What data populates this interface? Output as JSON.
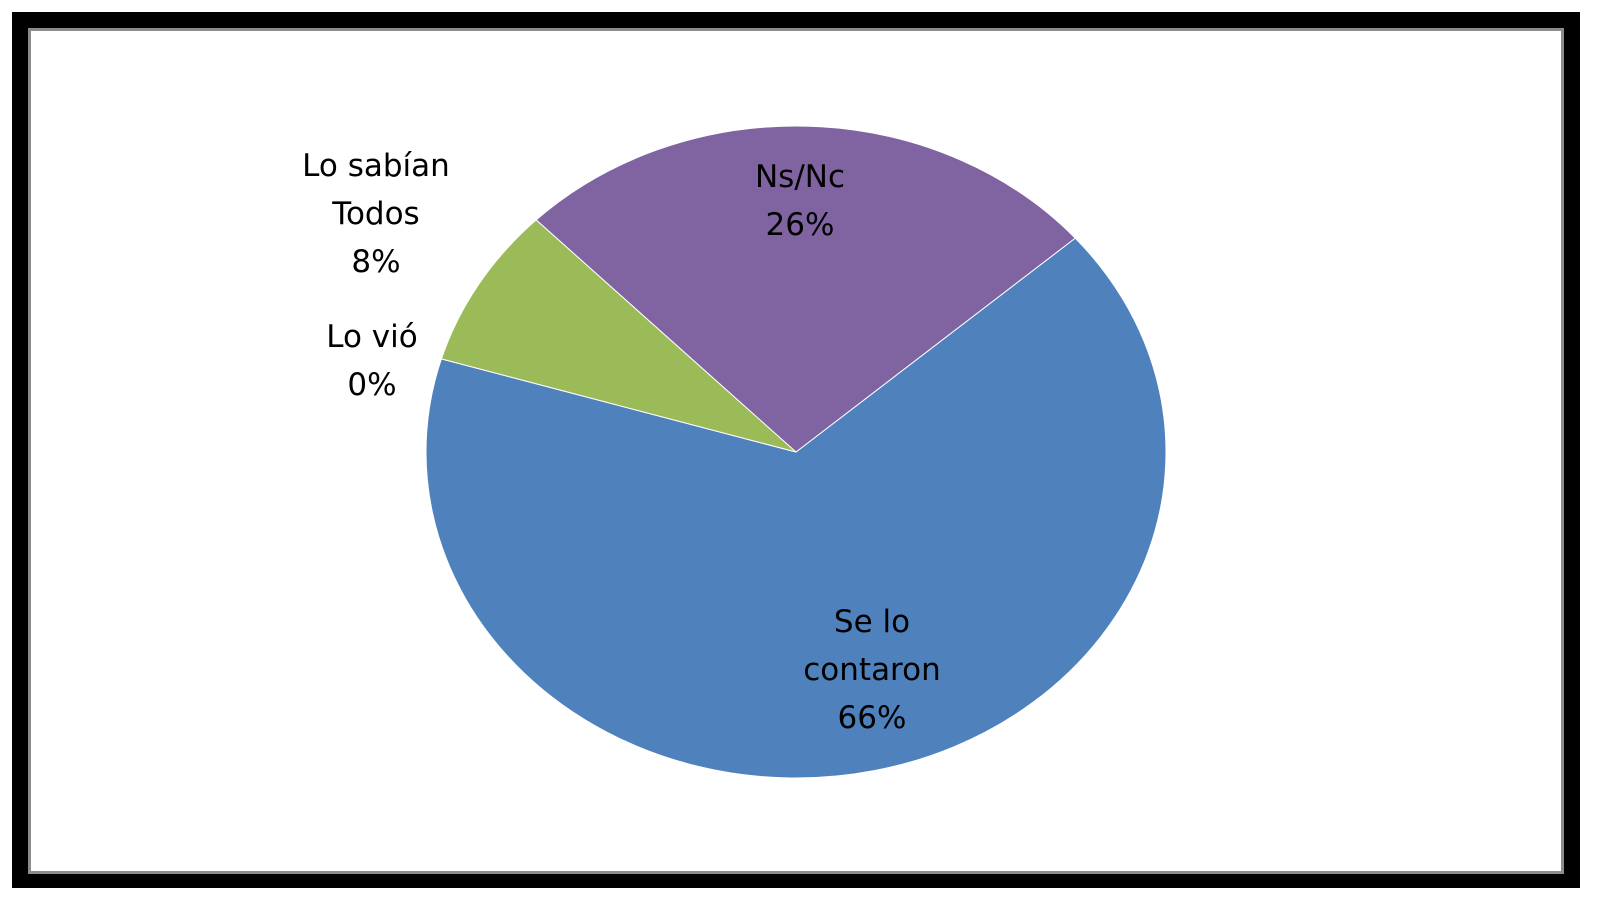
{
  "chart_data": {
    "type": "pie",
    "categories": [
      "Se lo contaron",
      "Lo vió",
      "Lo sabían Todos",
      "Ns/Nc"
    ],
    "values": [
      66,
      0,
      8,
      26
    ],
    "value_labels": [
      "66%",
      "0%",
      "8%",
      "26%"
    ],
    "colors": [
      "#4f81bd",
      "#c0504d",
      "#9bbb59",
      "#8064a2"
    ]
  }
}
